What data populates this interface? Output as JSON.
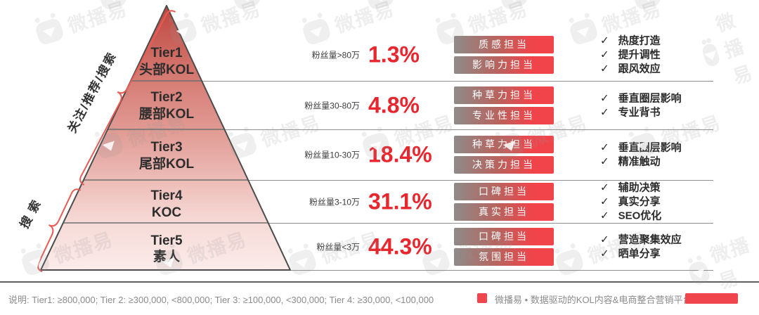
{
  "brand": {
    "watermark_text": "微播易"
  },
  "icons": {
    "check": "✓"
  },
  "colors": {
    "accent_red": "#E8262E",
    "tag_red": "#F0444A",
    "tag_gray": "#8E8B88",
    "brace_red": "#E95C54",
    "pyramid_top": "#BF463F",
    "pyramid_bottom": "#FBECEA"
  },
  "pyramid": {
    "side_label_top": "关注/推荐/搜索",
    "side_label_bottom": "搜索",
    "tiers": [
      {
        "name": "Tier1",
        "label": "头部KOL",
        "fans": "粉丝量>80万",
        "percent": "1.3%",
        "tags": [
          "质感担当",
          "影响力担当"
        ],
        "benefits": [
          "热度打造",
          "提升调性",
          "跟风效应"
        ]
      },
      {
        "name": "Tier2",
        "label": "腰部KOL",
        "fans": "粉丝量30-80万",
        "percent": "4.8%",
        "tags": [
          "种草力担当",
          "专业性担当"
        ],
        "benefits": [
          "垂直圈层影响",
          "专业背书"
        ]
      },
      {
        "name": "Tier3",
        "label": "尾部KOL",
        "fans": "粉丝量10-30万",
        "percent": "18.4%",
        "tags": [
          "种草力担当",
          "决策力担当"
        ],
        "benefits": [
          "垂直圈层影响",
          "精准触动"
        ]
      },
      {
        "name": "Tier4",
        "label": "KOC",
        "fans": "粉丝量3-10万",
        "percent": "31.1%",
        "tags": [
          "口碑担当",
          "真实担当"
        ],
        "benefits": [
          "辅助决策",
          "真实分享",
          "SEO优化"
        ]
      },
      {
        "name": "Tier5",
        "label": "素人",
        "fans": "粉丝量<3万",
        "percent": "44.3%",
        "tags": [
          "口碑担当",
          "氛围担当"
        ],
        "benefits": [
          "营造聚集效应",
          "晒单分享"
        ]
      }
    ]
  },
  "footer": {
    "note": "说明: Tier1: ≥800,000; Tier 2: ≥300,000, <800,000; Tier 3: ≥100,000, <300,000; Tier 4: ≥30,000, <100,000",
    "brand_line": "微播易 • 数据驱动的KOL内容&电商整合营销平台"
  }
}
